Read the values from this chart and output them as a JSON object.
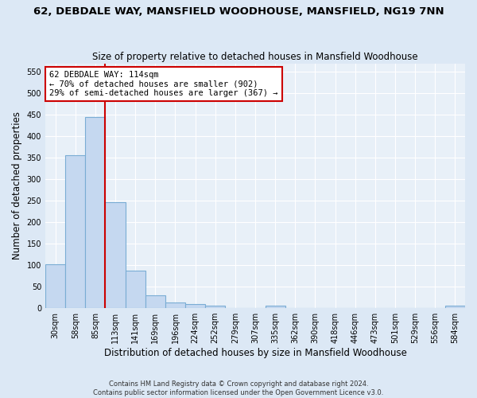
{
  "title1": "62, DEBDALE WAY, MANSFIELD WOODHOUSE, MANSFIELD, NG19 7NN",
  "title2": "Size of property relative to detached houses in Mansfield Woodhouse",
  "xlabel": "Distribution of detached houses by size in Mansfield Woodhouse",
  "ylabel": "Number of detached properties",
  "footnote": "Contains HM Land Registry data © Crown copyright and database right 2024.\nContains public sector information licensed under the Open Government Licence v3.0.",
  "bins": [
    "30sqm",
    "58sqm",
    "85sqm",
    "113sqm",
    "141sqm",
    "169sqm",
    "196sqm",
    "224sqm",
    "252sqm",
    "279sqm",
    "307sqm",
    "335sqm",
    "362sqm",
    "390sqm",
    "418sqm",
    "446sqm",
    "473sqm",
    "501sqm",
    "529sqm",
    "556sqm",
    "584sqm"
  ],
  "values": [
    102,
    356,
    446,
    246,
    88,
    30,
    13,
    9,
    5,
    0,
    0,
    5,
    0,
    0,
    0,
    0,
    0,
    0,
    0,
    0,
    5
  ],
  "bar_color": "#c5d8f0",
  "bar_edge_color": "#7aadd4",
  "vline_idx": 3,
  "vline_color": "#cc0000",
  "annotation_text": "62 DEBDALE WAY: 114sqm\n← 70% of detached houses are smaller (902)\n29% of semi-detached houses are larger (367) →",
  "annotation_box_color": "#ffffff",
  "annotation_box_edge": "#cc0000",
  "ylim": [
    0,
    570
  ],
  "yticks": [
    0,
    50,
    100,
    150,
    200,
    250,
    300,
    350,
    400,
    450,
    500,
    550
  ],
  "bg_color": "#dce8f5",
  "plot_bg": "#e8f0f8",
  "grid_color": "#ffffff",
  "title1_fontsize": 9.5,
  "title2_fontsize": 8.5,
  "tick_fontsize": 7,
  "ylabel_fontsize": 8.5,
  "xlabel_fontsize": 8.5,
  "annot_fontsize": 7.5,
  "footnote_fontsize": 6.0
}
